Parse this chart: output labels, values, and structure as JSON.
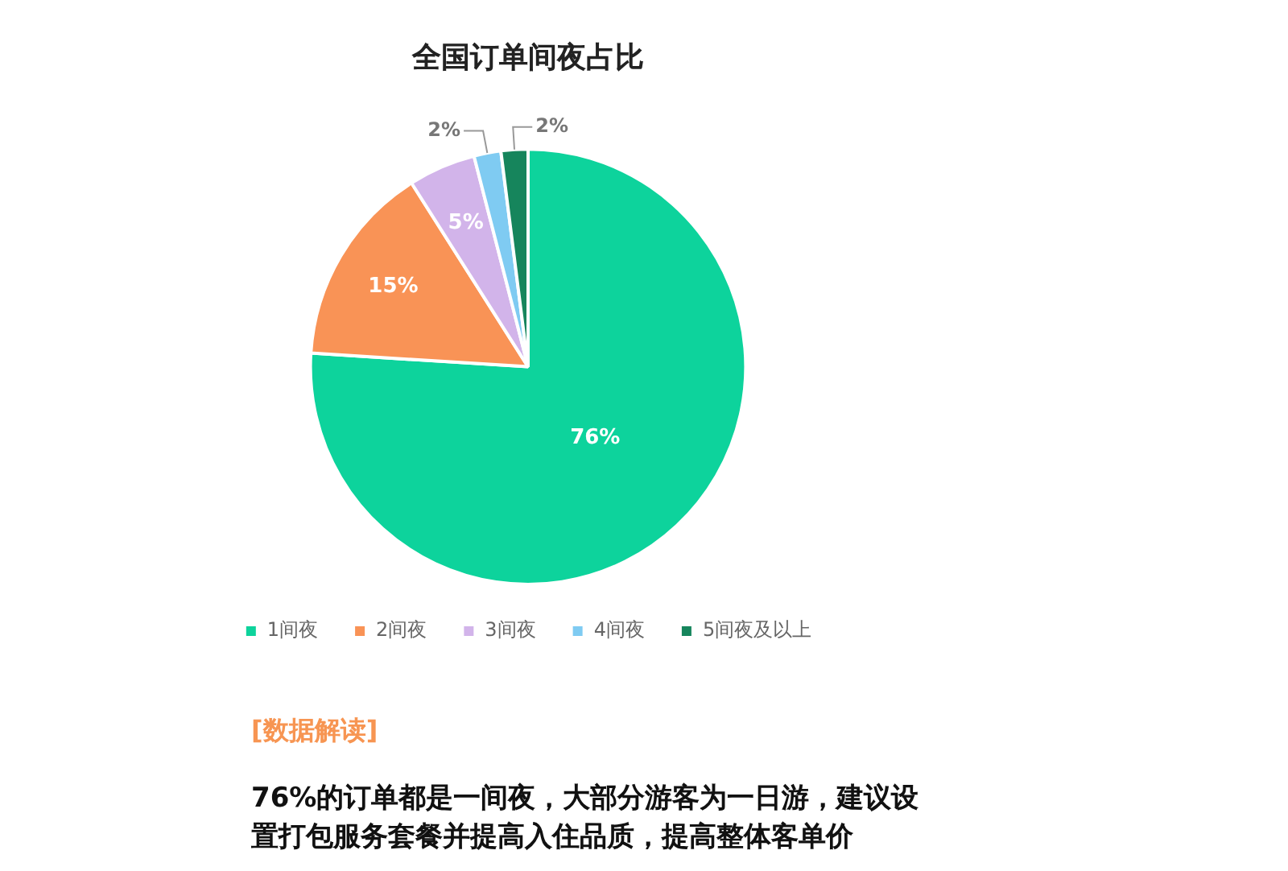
{
  "chart_data": {
    "type": "pie",
    "title": "全国订单间夜占比",
    "categories": [
      "1间夜",
      "2间夜",
      "3间夜",
      "4间夜",
      "5间夜及以上"
    ],
    "values": [
      76,
      15,
      5,
      2,
      2
    ],
    "colors": [
      "#0dd39c",
      "#f99356",
      "#d2b4ea",
      "#7fcbf2",
      "#16855c"
    ],
    "value_labels": [
      "76%",
      "15%",
      "5%",
      "2%",
      "2%"
    ],
    "legend": "bottom",
    "annotations": [
      "[数据解读]",
      "76%的订单都是一间夜，大部分游客为一日游，建议设置打包服务套餐并提高入住品质，提高整体客单价"
    ]
  }
}
